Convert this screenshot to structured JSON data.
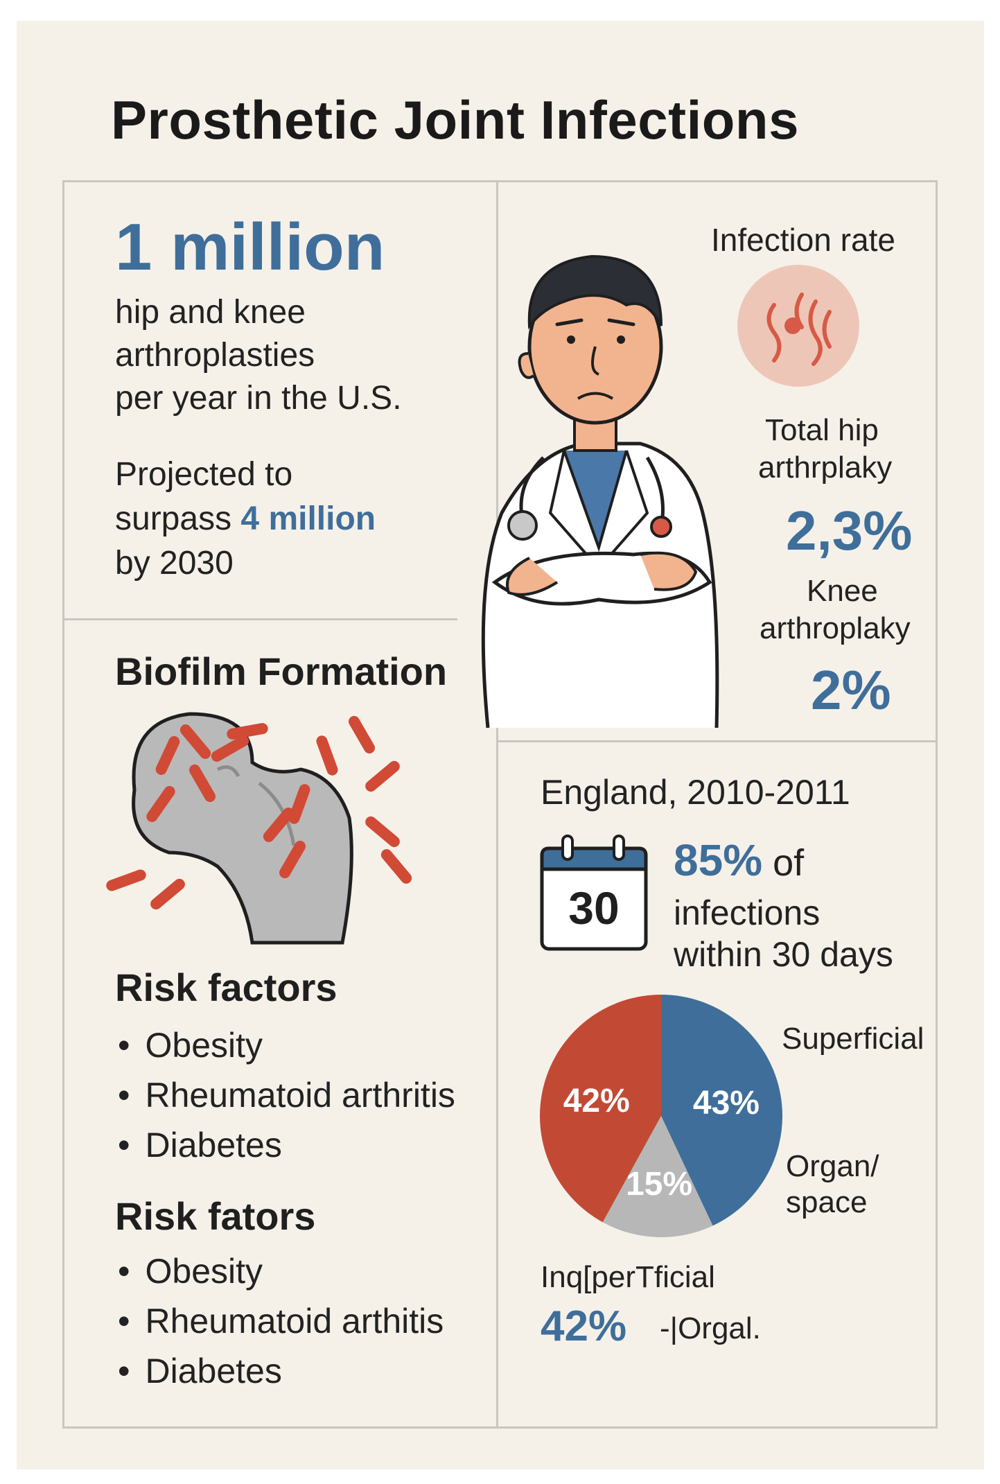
{
  "title": "Prosthetic Joint Infections",
  "stats": {
    "headline_value": "1 million",
    "headline_lines": [
      "hip and knee",
      "arthroplasties",
      "per year in the U.S."
    ],
    "projection_prefix": "Projected to",
    "projection_surpass": "surpass",
    "projection_value": "4 million",
    "projection_year": "by 2030"
  },
  "infection_rate": {
    "label": "Infection rate",
    "hip_label_lines": [
      "Total hip",
      "arthrplaky"
    ],
    "hip_value": "2,3%",
    "knee_label_lines": [
      "Knee",
      "arthroplaky"
    ],
    "knee_value": "2%",
    "icon": "infection-waves-icon"
  },
  "biofilm": {
    "heading": "Biofilm Formation",
    "icon": "bone-with-bacteria-illustration"
  },
  "risk_factors_1": {
    "heading": "Risk factors",
    "items": [
      "Obesity",
      "Rheumatoid arthritis",
      "Diabetes"
    ]
  },
  "risk_factors_2": {
    "heading": "Risk fators",
    "items": [
      "Obesity",
      "Rheumatoid arthitis",
      "Diabetes"
    ]
  },
  "england": {
    "heading": "England, 2010-2011",
    "calendar_day": "30",
    "pct": "85%",
    "of": "of",
    "lines": [
      "infections",
      "within 30 days"
    ]
  },
  "chart_data": {
    "type": "pie",
    "slices": [
      {
        "label": "Superficial",
        "value": 43,
        "display": "43%",
        "color": "#3f6e9a"
      },
      {
        "label": "Organ/\nspace",
        "value": 15,
        "display": "15%",
        "color": "#b7b7b7"
      },
      {
        "label": "",
        "value": 42,
        "display": "42%",
        "color": "#c24a35"
      }
    ],
    "labels": {
      "superficial": "Superficial",
      "organ_1": "Organ/",
      "organ_2": "space"
    },
    "footer_label": "Inq[perTficial",
    "footer_value": "42%",
    "footer_text": "-|Orgal."
  },
  "colors": {
    "accent_blue": "#3f6e9a",
    "accent_red": "#c24a35",
    "background": "#f5f1e9",
    "grey": "#b7b7b7"
  }
}
